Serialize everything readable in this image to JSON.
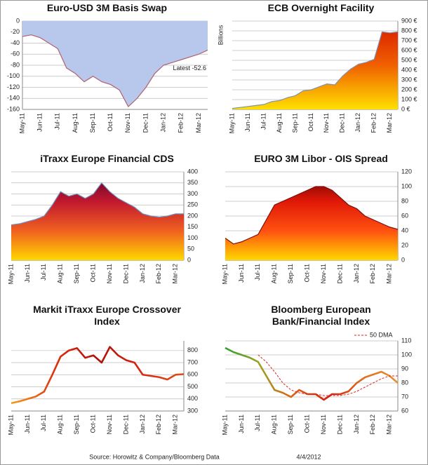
{
  "chart_data": [
    {
      "type": "area",
      "title": "Euro-USD 3M Basis Swap",
      "axis_side": "left",
      "categories": [
        "May-11",
        null,
        "Jun-11",
        null,
        "Jul-11",
        null,
        "Aug-11",
        null,
        "Sep-11",
        null,
        "Oct-11",
        null,
        "Nov-11",
        null,
        "Dec-11",
        null,
        "Jan-12",
        null,
        "Feb-12",
        null,
        "Mar-12",
        null
      ],
      "series": [
        {
          "values": [
            -28,
            -25,
            -30,
            -40,
            -50,
            -85,
            -95,
            -110,
            -100,
            -110,
            -115,
            -125,
            -155,
            -140,
            -120,
            -95,
            -80,
            -75,
            -70,
            -65,
            -60,
            -52.6
          ],
          "fill": "#b8c8ec",
          "line_color": "#b06070"
        }
      ],
      "ylim": [
        -160,
        0
      ],
      "yticks": [
        -160,
        -140,
        -120,
        -100,
        -80,
        -60,
        -40,
        -20,
        0
      ],
      "grid": true,
      "annotation": "Latest -52.6"
    },
    {
      "type": "area",
      "title": "ECB Overnight Facility",
      "axis_side": "right",
      "ylabel": "Billions",
      "categories": [
        "May-11",
        null,
        "Jun-11",
        null,
        "Jul-11",
        null,
        "Aug-11",
        null,
        "Sep-11",
        null,
        "Oct-11",
        null,
        "Nov-11",
        null,
        "Dec-11",
        null,
        "Jan-12",
        null,
        "Feb-12",
        null,
        "Mar-12",
        null
      ],
      "series": [
        {
          "values": [
            10,
            20,
            30,
            40,
            50,
            80,
            90,
            120,
            140,
            190,
            200,
            230,
            260,
            250,
            340,
            410,
            460,
            480,
            510,
            790,
            780,
            790
          ],
          "gradient": [
            "#d81800",
            "#f06000",
            "#ffe000"
          ],
          "line_color": "#8090b0"
        }
      ],
      "ylim": [
        0,
        900
      ],
      "yticks": [
        {
          "value": 0,
          "label": "0 €"
        },
        {
          "value": 100,
          "label": "100 €"
        },
        {
          "value": 200,
          "label": "200 €"
        },
        {
          "value": 300,
          "label": "300 €"
        },
        {
          "value": 400,
          "label": "400 €"
        },
        {
          "value": 500,
          "label": "500 €"
        },
        {
          "value": 600,
          "label": "600 €"
        },
        {
          "value": 700,
          "label": "700 €"
        },
        {
          "value": 800,
          "label": "800 €"
        },
        {
          "value": 900,
          "label": "900 €"
        }
      ],
      "grid": true
    },
    {
      "type": "area",
      "title": "iTraxx Europe Financial CDS",
      "axis_side": "right",
      "categories": [
        "May-11",
        null,
        "Jun-11",
        null,
        "Jul-11",
        null,
        "Aug-11",
        null,
        "Sep-11",
        null,
        "Oct-11",
        null,
        "Nov-11",
        null,
        "Dec-11",
        null,
        "Jan-12",
        null,
        "Feb-12",
        null,
        "Mar-12",
        null
      ],
      "series": [
        {
          "values": [
            160,
            165,
            175,
            185,
            200,
            250,
            310,
            290,
            300,
            280,
            300,
            350,
            310,
            280,
            260,
            240,
            210,
            200,
            195,
            200,
            210,
            210
          ],
          "gradient": [
            "#5a0028",
            "#c01830",
            "#f06020",
            "#ffd800"
          ],
          "line_color": "#7090c0"
        }
      ],
      "ylim": [
        0,
        400
      ],
      "yticks": [
        0,
        50,
        100,
        150,
        200,
        250,
        300,
        350,
        400
      ],
      "grid": true
    },
    {
      "type": "area",
      "title": "EURO 3M Libor - OIS Spread",
      "axis_side": "right",
      "categories": [
        "May-11",
        null,
        "Jun-11",
        null,
        "Jul-11",
        null,
        "Aug-11",
        null,
        "Sep-11",
        null,
        "Oct-11",
        null,
        "Nov-11",
        null,
        "Dec-11",
        null,
        "Jan-12",
        null,
        "Feb-12",
        null,
        "Mar-12",
        null
      ],
      "series": [
        {
          "values": [
            30,
            22,
            25,
            30,
            35,
            55,
            75,
            80,
            85,
            90,
            95,
            100,
            100,
            95,
            85,
            75,
            70,
            60,
            55,
            50,
            45,
            42
          ],
          "gradient": [
            "#600000",
            "#e01808",
            "#ff5010",
            "#ffd800"
          ],
          "line_color": "#7a1010"
        }
      ],
      "ylim": [
        0,
        120
      ],
      "yticks": [
        0,
        20,
        40,
        60,
        80,
        100,
        120
      ],
      "grid": true
    },
    {
      "type": "line",
      "title": "Markit iTraxx Europe Crossover Index",
      "axis_side": "right",
      "categories": [
        "May-11",
        null,
        "Jun-11",
        null,
        "Jul-11",
        null,
        "Aug-11",
        null,
        "Sep-11",
        null,
        "Oct-11",
        null,
        "Nov-11",
        null,
        "Dec-11",
        null,
        "Jan-12",
        null,
        "Feb-12",
        null,
        "Mar-12",
        null
      ],
      "series": [
        {
          "values": [
            365,
            380,
            400,
            420,
            460,
            600,
            750,
            800,
            820,
            740,
            760,
            700,
            830,
            760,
            720,
            700,
            600,
            590,
            580,
            560,
            600,
            605
          ],
          "gradient": [
            "#f0a020",
            "#e03010",
            "#b01008",
            "#d82810",
            "#e05018"
          ]
        }
      ],
      "ylim": [
        300,
        880
      ],
      "yticks": [
        300,
        400,
        500,
        600,
        700,
        800
      ],
      "grid": true
    },
    {
      "type": "line",
      "title": "Bloomberg European Bank/Financial Index",
      "axis_side": "right",
      "categories": [
        "May-11",
        null,
        "Jun-11",
        null,
        "Jul-11",
        null,
        "Aug-11",
        null,
        "Sep-11",
        null,
        "Oct-11",
        null,
        "Nov-11",
        null,
        "Dec-11",
        null,
        "Jan-12",
        null,
        "Feb-12",
        null,
        "Mar-12",
        null
      ],
      "series": [
        {
          "values": [
            105,
            102,
            100,
            98,
            95,
            85,
            75,
            73,
            70,
            75,
            72,
            72,
            68,
            72,
            72,
            74,
            80,
            84,
            86,
            88,
            85,
            80
          ],
          "gradient": [
            "#30a030",
            "#a0a020",
            "#e06010",
            "#d02010",
            "#e07020",
            "#e89030"
          ]
        },
        {
          "name": "50 DMA",
          "color": "#e02020",
          "dashed": true,
          "values": [
            null,
            null,
            null,
            null,
            100,
            95,
            88,
            80,
            75,
            73,
            72,
            72,
            71,
            71,
            71,
            72,
            74,
            77,
            80,
            83,
            85,
            85
          ]
        }
      ],
      "ylim": [
        60,
        110
      ],
      "yticks": [
        60,
        70,
        80,
        90,
        100,
        110
      ],
      "grid": true,
      "legend": "top-right"
    }
  ],
  "footer": {
    "source": "Source: Horowitz & Company/Bloomberg Data",
    "date": "4/4/2012"
  }
}
